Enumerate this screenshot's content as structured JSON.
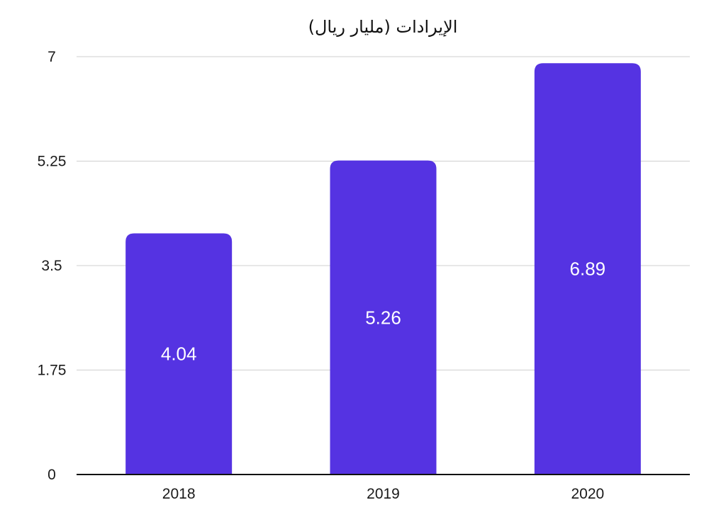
{
  "chart_data": {
    "type": "bar",
    "title": "الإيرادات (مليار ريال)",
    "categories": [
      "2018",
      "2019",
      "2020"
    ],
    "values": [
      4.04,
      5.26,
      6.89
    ],
    "data_labels": [
      "4.04",
      "5.26",
      "6.89"
    ],
    "ylim": [
      0,
      7
    ],
    "yticks": [
      "0",
      "1.75",
      "3.5",
      "5.25",
      "7"
    ],
    "grid": true,
    "legend": "none",
    "bar_color": "#5533e2",
    "label_color": "#ffffff",
    "grid_color": "#cfcfcf",
    "axis_color": "#111111"
  }
}
